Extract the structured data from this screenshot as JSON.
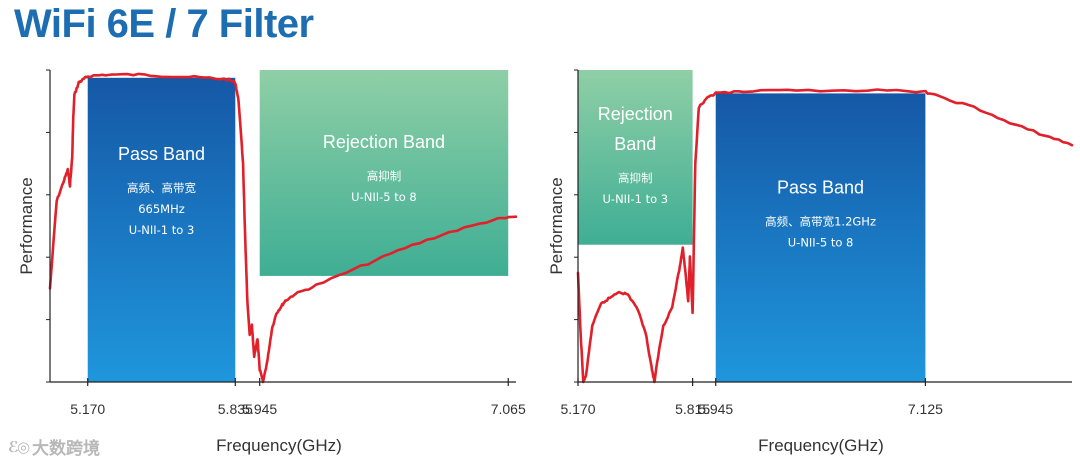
{
  "title": "WiFi 6E / 7 Filter",
  "watermark": {
    "logo": "ℰ◎",
    "text": "大数跨境"
  },
  "colors": {
    "curve": "#e0202a",
    "pass_top": "#1558a6",
    "pass_bottom": "#1f96dc",
    "reject_top": "#8fcfa6",
    "reject_bottom": "#3fae94",
    "axis": "#222222",
    "title": "#1d6db2"
  },
  "chart_data": [
    {
      "type": "line",
      "xlabel": "Frequency(GHz)",
      "ylabel": "Performance",
      "xlim": [
        5.0,
        7.1
      ],
      "ylim": [
        0,
        1
      ],
      "x_ticks": [
        5.17,
        5.835,
        5.945,
        7.065
      ],
      "x_tick_labels": [
        "5.170",
        "5.835",
        "5.945",
        "7.065"
      ],
      "series": [
        {
          "x": [
            5.0,
            5.03,
            5.06,
            5.08,
            5.09,
            5.1,
            5.105,
            5.11,
            5.13,
            5.15,
            5.17,
            5.25,
            5.4,
            5.55,
            5.7,
            5.8,
            5.835,
            5.85,
            5.87,
            5.88,
            5.89,
            5.9,
            5.91,
            5.92,
            5.935,
            5.945,
            5.96,
            5.98,
            6.0,
            6.02,
            6.04,
            6.06,
            6.1,
            6.2,
            6.4,
            6.6,
            6.8,
            7.0,
            7.1
          ],
          "y": [
            0.3,
            0.58,
            0.64,
            0.68,
            0.63,
            0.72,
            0.85,
            0.92,
            0.96,
            0.97,
            0.98,
            0.985,
            0.985,
            0.98,
            0.975,
            0.97,
            0.96,
            0.9,
            0.7,
            0.45,
            0.25,
            0.15,
            0.18,
            0.08,
            0.14,
            0.04,
            0.0,
            0.07,
            0.17,
            0.22,
            0.24,
            0.26,
            0.28,
            0.31,
            0.37,
            0.43,
            0.48,
            0.52,
            0.53
          ]
        }
      ],
      "bands": [
        {
          "kind": "pass",
          "x": [
            5.17,
            5.835
          ],
          "y": [
            0,
            0.975
          ],
          "title_lines": [
            "Pass Band"
          ],
          "sub_lines": [
            "高频、高带宽",
            "665MHz",
            "U-NII-1 to 3"
          ]
        },
        {
          "kind": "reject",
          "x": [
            5.945,
            7.065
          ],
          "y": [
            0.34,
            1.0
          ],
          "title_lines": [
            "Rejection Band"
          ],
          "sub_lines": [
            "高抑制",
            "U-NII-5 to 8"
          ]
        }
      ]
    },
    {
      "type": "line",
      "xlabel": "Frequency(GHz)",
      "ylabel": "Performance",
      "xlim": [
        5.17,
        7.95
      ],
      "ylim": [
        0,
        1
      ],
      "x_ticks": [
        5.17,
        5.815,
        5.945,
        7.125
      ],
      "x_tick_labels": [
        "5.170",
        "5.815",
        "5.945",
        "7.125"
      ],
      "series": [
        {
          "x": [
            5.17,
            5.185,
            5.2,
            5.215,
            5.25,
            5.3,
            5.35,
            5.4,
            5.45,
            5.5,
            5.55,
            5.58,
            5.6,
            5.62,
            5.65,
            5.7,
            5.74,
            5.76,
            5.775,
            5.79,
            5.8,
            5.815,
            5.83,
            5.85,
            5.9,
            5.945,
            6.1,
            6.4,
            6.8,
            7.125,
            7.2,
            7.4,
            7.6,
            7.8,
            7.95
          ],
          "y": [
            0.35,
            0.15,
            0.0,
            0.02,
            0.18,
            0.25,
            0.27,
            0.29,
            0.28,
            0.24,
            0.16,
            0.06,
            0.0,
            0.08,
            0.18,
            0.24,
            0.36,
            0.43,
            0.35,
            0.26,
            0.4,
            0.22,
            0.7,
            0.88,
            0.91,
            0.925,
            0.93,
            0.935,
            0.935,
            0.93,
            0.915,
            0.88,
            0.83,
            0.79,
            0.76
          ]
        }
      ],
      "bands": [
        {
          "kind": "reject",
          "x": [
            5.17,
            5.815
          ],
          "y": [
            0.44,
            1.0
          ],
          "title_lines": [
            "Rejection",
            "Band"
          ],
          "sub_lines": [
            "高抑制",
            "U-NII-1 to 3"
          ]
        },
        {
          "kind": "pass",
          "x": [
            5.945,
            7.125
          ],
          "y": [
            0,
            0.925
          ],
          "title_lines": [
            "Pass Band"
          ],
          "sub_lines": [
            "高频、高带宽1.2GHz",
            "U-NII-5 to 8"
          ]
        }
      ]
    }
  ]
}
